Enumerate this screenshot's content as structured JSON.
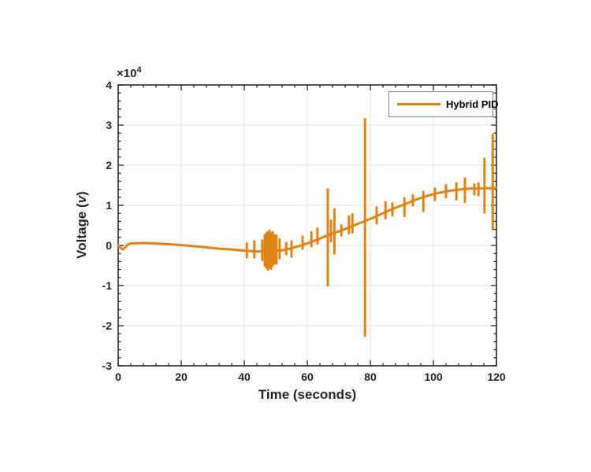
{
  "chart_data": {
    "type": "line",
    "xlabel": "Time (seconds)",
    "ylabel": "Voltage (v)",
    "ylabel_parts": {
      "prefix": "Voltage (",
      "italic": "v",
      "suffix": ")"
    },
    "y_axis_exponent": {
      "base": "×10",
      "power": "4"
    },
    "y_unit_scale": 10000,
    "xlim": [
      0,
      120
    ],
    "ylim": [
      -3,
      4
    ],
    "xticks": [
      0,
      20,
      40,
      60,
      80,
      100,
      120
    ],
    "xtick_labels": [
      "0",
      "20",
      "40",
      "60",
      "80",
      "100",
      "120"
    ],
    "yticks": [
      -3,
      -2,
      -1,
      0,
      1,
      2,
      3,
      4
    ],
    "ytick_labels": [
      "-3",
      "-2",
      "-1",
      "0",
      "1",
      "2",
      "3",
      "4"
    ],
    "x_minor_step": 4,
    "y_minor_step": 0.2,
    "grid": true,
    "legend": {
      "position": "northeast",
      "entries": [
        {
          "label": "Hybrid PID",
          "color": "#E08214"
        }
      ]
    },
    "colors": {
      "axis": "#262626",
      "grid": "#E3E3E3",
      "line": "#E08214",
      "legend_border": "#848484",
      "text": "#252525"
    },
    "series": [
      {
        "name": "Hybrid PID",
        "baseline": [
          [
            0,
            0
          ],
          [
            0.8,
            -0.06
          ],
          [
            1.5,
            -0.1
          ],
          [
            2.2,
            -0.05
          ],
          [
            3,
            0.02
          ],
          [
            4,
            0.05
          ],
          [
            8,
            0.06
          ],
          [
            12,
            0.05
          ],
          [
            16,
            0.03
          ],
          [
            20,
            0.01
          ],
          [
            24,
            -0.02
          ],
          [
            28,
            -0.05
          ],
          [
            32,
            -0.08
          ],
          [
            36,
            -0.1
          ],
          [
            40,
            -0.13
          ],
          [
            44,
            -0.15
          ],
          [
            48,
            -0.15
          ],
          [
            52,
            -0.12
          ],
          [
            55,
            -0.07
          ],
          [
            58,
            0.0
          ],
          [
            61,
            0.08
          ],
          [
            64,
            0.17
          ],
          [
            67,
            0.27
          ],
          [
            70,
            0.35
          ],
          [
            73,
            0.44
          ],
          [
            76,
            0.54
          ],
          [
            79,
            0.63
          ],
          [
            82,
            0.73
          ],
          [
            85,
            0.84
          ],
          [
            88,
            0.94
          ],
          [
            91,
            1.03
          ],
          [
            94,
            1.13
          ],
          [
            97,
            1.21
          ],
          [
            100,
            1.28
          ],
          [
            103,
            1.33
          ],
          [
            106,
            1.37
          ],
          [
            109,
            1.4
          ],
          [
            112,
            1.42
          ],
          [
            115,
            1.42
          ],
          [
            117,
            1.43
          ],
          [
            118.5,
            1.42
          ],
          [
            120,
            1.44
          ]
        ],
        "spikes": [
          [
            40.8,
            -0.3,
            0.05
          ],
          [
            43.2,
            -0.3,
            0.1
          ],
          [
            45.7,
            -0.36,
            0.12
          ],
          [
            46.5,
            -0.5,
            0.25
          ],
          [
            47,
            -0.55,
            0.3
          ],
          [
            47.5,
            -0.6,
            0.33
          ],
          [
            48,
            -0.55,
            0.37
          ],
          [
            48.5,
            -0.58,
            0.3
          ],
          [
            49,
            -0.5,
            0.33
          ],
          [
            49.5,
            -0.45,
            0.25
          ],
          [
            50.2,
            -0.45,
            0.25
          ],
          [
            51.2,
            -0.32,
            0.15
          ],
          [
            53.3,
            -0.22,
            0.06
          ],
          [
            55,
            -0.28,
            0.1
          ],
          [
            58.5,
            -0.08,
            0.22
          ],
          [
            61.3,
            -0.02,
            0.33
          ],
          [
            63.2,
            0.05,
            0.42
          ],
          [
            66.5,
            -1.0,
            1.4
          ],
          [
            67.5,
            0.1,
            0.62
          ],
          [
            68.6,
            -0.2,
            0.9
          ],
          [
            70.8,
            0.25,
            0.5
          ],
          [
            73.2,
            0.3,
            0.72
          ],
          [
            74.3,
            0.33,
            0.78
          ],
          [
            78.3,
            -2.25,
            3.15
          ],
          [
            82,
            0.55,
            0.95
          ],
          [
            84.8,
            0.68,
            1.08
          ],
          [
            87,
            0.75,
            1.05
          ],
          [
            90.8,
            0.73,
            1.18
          ],
          [
            93.5,
            1.0,
            1.25
          ],
          [
            96.8,
            0.86,
            1.33
          ],
          [
            100.5,
            1.13,
            1.42
          ],
          [
            104,
            1.2,
            1.5
          ],
          [
            107.3,
            1.15,
            1.55
          ],
          [
            110,
            1.08,
            1.67
          ],
          [
            113,
            1.27,
            1.52
          ],
          [
            114.3,
            1.25,
            1.55
          ],
          [
            116.2,
            0.82,
            2.16
          ],
          [
            118.8,
            0.4,
            2.76
          ]
        ]
      }
    ]
  }
}
